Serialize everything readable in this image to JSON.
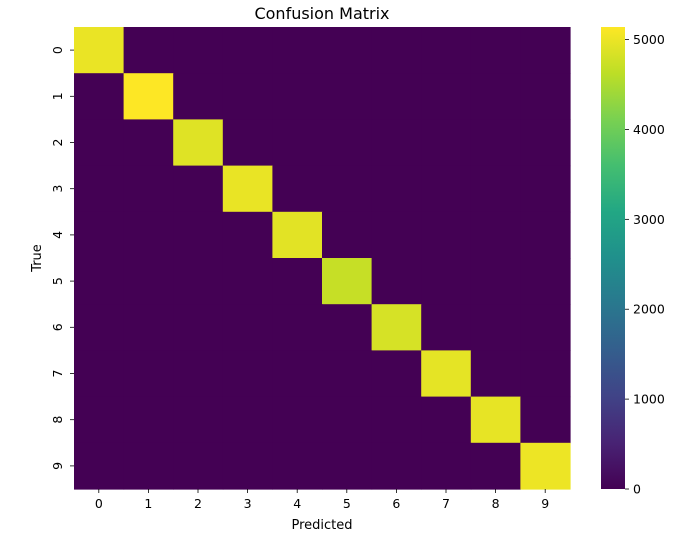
{
  "chart_data": {
    "type": "heatmap",
    "title": "Confusion Matrix",
    "xlabel": "Predicted",
    "ylabel": "True",
    "x_categories": [
      "0",
      "1",
      "2",
      "3",
      "4",
      "5",
      "6",
      "7",
      "8",
      "9"
    ],
    "y_categories": [
      "0",
      "1",
      "2",
      "3",
      "4",
      "5",
      "6",
      "7",
      "8",
      "9"
    ],
    "values": [
      [
        4990,
        0,
        0,
        0,
        0,
        0,
        0,
        0,
        0,
        0
      ],
      [
        0,
        5140,
        0,
        0,
        0,
        0,
        0,
        0,
        0,
        0
      ],
      [
        0,
        0,
        4900,
        0,
        0,
        0,
        0,
        0,
        0,
        0
      ],
      [
        0,
        0,
        0,
        4980,
        0,
        0,
        0,
        0,
        0,
        0
      ],
      [
        0,
        0,
        0,
        0,
        4920,
        0,
        0,
        0,
        0,
        0
      ],
      [
        0,
        0,
        0,
        0,
        0,
        4700,
        0,
        0,
        0,
        0
      ],
      [
        0,
        0,
        0,
        0,
        0,
        0,
        4830,
        0,
        0,
        0
      ],
      [
        0,
        0,
        0,
        0,
        0,
        0,
        0,
        4950,
        0,
        0
      ],
      [
        0,
        0,
        0,
        0,
        0,
        0,
        0,
        0,
        4960,
        0
      ],
      [
        0,
        0,
        0,
        0,
        0,
        0,
        0,
        0,
        0,
        5010
      ]
    ],
    "colormap": "viridis",
    "vmin": 0,
    "vmax": 5140,
    "colorbar_ticks": [
      0,
      1000,
      2000,
      3000,
      4000,
      5000
    ],
    "colorbar_tick_labels": [
      "0",
      "1000",
      "2000",
      "3000",
      "4000",
      "5000"
    ]
  }
}
